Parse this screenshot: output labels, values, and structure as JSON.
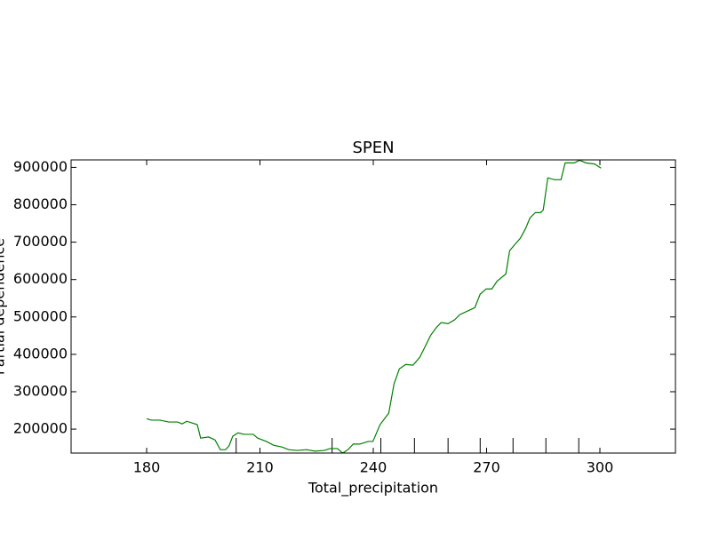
{
  "chart_data": {
    "type": "line",
    "title": "SPEN",
    "x_label": "Total_precipitation",
    "y_label": "Partial dependence",
    "x": [
      180,
      181.2,
      183.5,
      185.9,
      188.2,
      189.4,
      190.6,
      193.4,
      194.3,
      196.4,
      198.1,
      199.5,
      200.9,
      201.8,
      202.8,
      204.2,
      205.8,
      208.2,
      209.4,
      211.7,
      213.6,
      215.9,
      217.6,
      219.9,
      222.3,
      224.6,
      227.0,
      228.6,
      230.5,
      231.9,
      233.3,
      234.7,
      236.4,
      238.7,
      239.9,
      241.8,
      244.1,
      245.5,
      246.9,
      248.6,
      250.5,
      252.3,
      253.5,
      255.2,
      256.8,
      258.0,
      259.8,
      261.5,
      262.9,
      265.0,
      266.9,
      268.3,
      269.9,
      271.4,
      272.8,
      275.1,
      276.1,
      277.5,
      278.9,
      280.3,
      281.5,
      282.9,
      284.3,
      285.0,
      286.2,
      288.0,
      289.7,
      290.8,
      293.2,
      294.6,
      296.3,
      298.6,
      300.3
    ],
    "series": [
      {
        "name": "SPEN",
        "color": "#008000",
        "values": [
          228000,
          224000,
          224000,
          219000,
          219000,
          214000,
          221000,
          212000,
          176000,
          179000,
          171000,
          145000,
          145000,
          155000,
          181000,
          190000,
          186000,
          186000,
          176000,
          167000,
          157000,
          152000,
          145000,
          143000,
          145000,
          141000,
          143000,
          148000,
          148000,
          136000,
          145000,
          160000,
          160000,
          167000,
          167000,
          212000,
          243000,
          321000,
          361000,
          373000,
          371000,
          392000,
          416000,
          451000,
          473000,
          485000,
          482000,
          492000,
          506000,
          516000,
          525000,
          561000,
          575000,
          575000,
          596000,
          615000,
          677000,
          694000,
          710000,
          736000,
          765000,
          779000,
          779000,
          786000,
          872000,
          867000,
          867000,
          912000,
          912000,
          919000,
          912000,
          909000,
          898000
        ]
      }
    ],
    "deciles": [
      203.7,
      229.1,
      242.0,
      250.9,
      259.8,
      268.3,
      277.0,
      285.7,
      294.4
    ],
    "xlim": [
      160,
      320
    ],
    "xticks": [
      180,
      210,
      240,
      270,
      300
    ],
    "ylim": [
      136000,
      920000
    ],
    "yticks": [
      200000,
      300000,
      400000,
      500000,
      600000,
      700000,
      800000,
      900000
    ],
    "grid": false
  }
}
